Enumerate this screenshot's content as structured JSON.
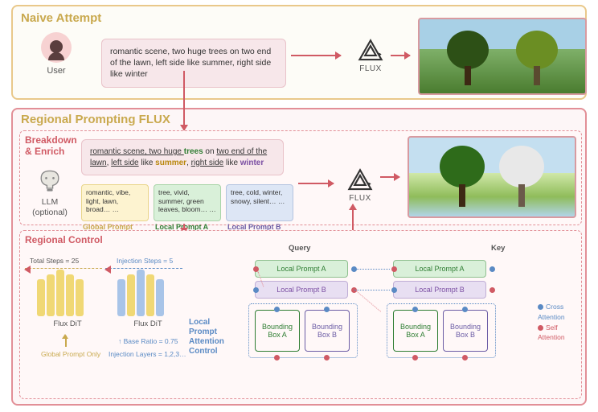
{
  "top": {
    "title": "Naive Attempt",
    "user_label": "User",
    "prompt": "romantic scene, two huge trees on two end of the lawn, left side like summer, right side like winter",
    "flux_label": "FLUX"
  },
  "bot": {
    "title": "Regional Prompting FLUX",
    "breakdown_label": "Breakdown\n& Enrich",
    "llm_label": "LLM\n(optional)",
    "prompt_pre": "romantic scene, two huge ",
    "prompt_trees": "trees",
    "prompt_mid1": " on ",
    "prompt_two_end": "two end of the lawn",
    "prompt_sep": ", ",
    "prompt_left": "left side",
    "prompt_like": " like ",
    "prompt_summer": "summer",
    "prompt_sep2": ", ",
    "prompt_right": "right side",
    "prompt_like2": " like ",
    "prompt_winter": "winter",
    "mini_yellow": "romantic, vibe, light, lawn, broad… …",
    "mini_green": "tree, vivid, summer, green leaves, bloom… …",
    "mini_blue": "tree, cold, winter, snowy, silent… …",
    "label_yellow": "Global Prompt",
    "label_green": "Local Prompt A",
    "label_blue": "Local Prompt B",
    "flux_label": "FLUX"
  },
  "regional": {
    "label": "Regional Control",
    "total_steps": "Total Steps = 25",
    "injection_steps": "Injection Steps = 5",
    "dit_label": "Flux DiT",
    "global_only": "Global Prompt Only",
    "base_ratio": "Base Ratio = 0.75",
    "injection_layers": "Injection Layers = 1,2,3…",
    "local_ctrl": "Local Prompt Attention Control",
    "query_label": "Query",
    "key_label": "Key",
    "lpa": "Local Prompt A",
    "lpb": "Local Prompt B",
    "bba": "Bounding Box A",
    "bbb": "Bounding Box B",
    "cross": "Cross Attention",
    "self": "Self Attention"
  },
  "colors": {
    "gold": "#c9a94e",
    "pink": "#d05a64",
    "blue": "#5a8ac4",
    "green": "#2e7d32",
    "purple": "#7b4fa3"
  },
  "dit_bars_1": [
    46,
    52,
    58,
    52,
    46
  ],
  "dit_bars_2": [
    46,
    52,
    58,
    52,
    46
  ]
}
